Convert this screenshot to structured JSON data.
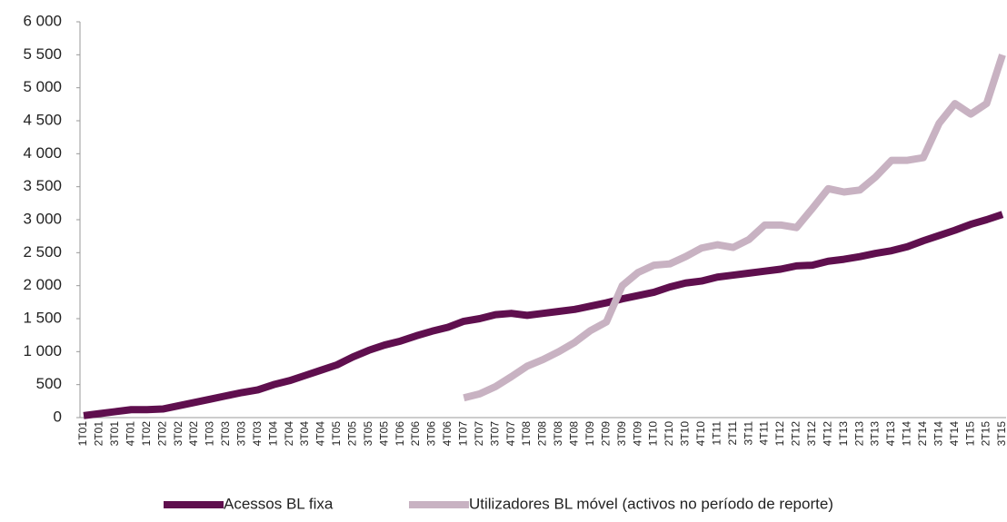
{
  "chart_data": {
    "type": "line",
    "categories": [
      "1T01",
      "2T01",
      "3T01",
      "4T01",
      "1T02",
      "2T02",
      "3T02",
      "4T02",
      "1T03",
      "2T03",
      "3T03",
      "4T03",
      "1T04",
      "2T04",
      "3T04",
      "4T04",
      "1T05",
      "2T05",
      "3T05",
      "4T05",
      "1T06",
      "2T06",
      "3T06",
      "4T06",
      "1T07",
      "2T07",
      "3T07",
      "4T07",
      "1T08",
      "2T08",
      "3T08",
      "4T08",
      "1T09",
      "2T09",
      "3T09",
      "4T09",
      "1T10",
      "2T10",
      "3T10",
      "4T10",
      "1T11",
      "2T11",
      "3T11",
      "4T11",
      "1T12",
      "2T12",
      "3T12",
      "4T12",
      "1T13",
      "2T13",
      "3T13",
      "4T13",
      "1T14",
      "2T14",
      "3T14",
      "4T14",
      "1T15",
      "2T15",
      "3T15"
    ],
    "series": [
      {
        "name": "Acessos BL fixa",
        "color": "#5f0f4e",
        "values": [
          30,
          60,
          90,
          120,
          120,
          130,
          180,
          230,
          280,
          330,
          380,
          420,
          500,
          560,
          640,
          720,
          800,
          920,
          1020,
          1100,
          1160,
          1240,
          1310,
          1370,
          1460,
          1500,
          1560,
          1580,
          1550,
          1580,
          1610,
          1640,
          1690,
          1740,
          1800,
          1850,
          1900,
          1980,
          2040,
          2070,
          2130,
          2160,
          2190,
          2220,
          2250,
          2300,
          2310,
          2370,
          2400,
          2440,
          2490,
          2530,
          2590,
          2680,
          2760,
          2840,
          2930,
          3000,
          3080
        ]
      },
      {
        "name": "Utilizadores BL móvel (activos no período de reporte)",
        "color": "#c8b2c2",
        "values": [
          null,
          null,
          null,
          null,
          null,
          null,
          null,
          null,
          null,
          null,
          null,
          null,
          null,
          null,
          null,
          null,
          null,
          null,
          null,
          null,
          null,
          null,
          null,
          null,
          300,
          360,
          470,
          620,
          780,
          880,
          1000,
          1140,
          1320,
          1450,
          2000,
          2200,
          2310,
          2330,
          2440,
          2570,
          2620,
          2580,
          2700,
          2920,
          2920,
          2880,
          3170,
          3470,
          3420,
          3450,
          3650,
          3900,
          3900,
          3940,
          4460,
          4760,
          4600,
          4760,
          5500
        ]
      }
    ],
    "ylim": [
      0,
      6000
    ],
    "yticks": [
      0,
      500,
      {
        "value": 1000,
        "label": "1 000"
      },
      {
        "value": 1500,
        "label": "1 500"
      },
      {
        "value": 2000,
        "label": "2 000"
      },
      {
        "value": 2500,
        "label": "2 500"
      },
      {
        "value": 3000,
        "label": "3 000"
      },
      {
        "value": 3500,
        "label": "3 500"
      },
      {
        "value": 4000,
        "label": "4 000"
      },
      {
        "value": 4500,
        "label": "4 500"
      },
      {
        "value": 5000,
        "label": "5 000"
      },
      {
        "value": 5500,
        "label": "5 500"
      },
      {
        "value": 6000,
        "label": "6 000"
      }
    ],
    "legend": "bottom"
  }
}
